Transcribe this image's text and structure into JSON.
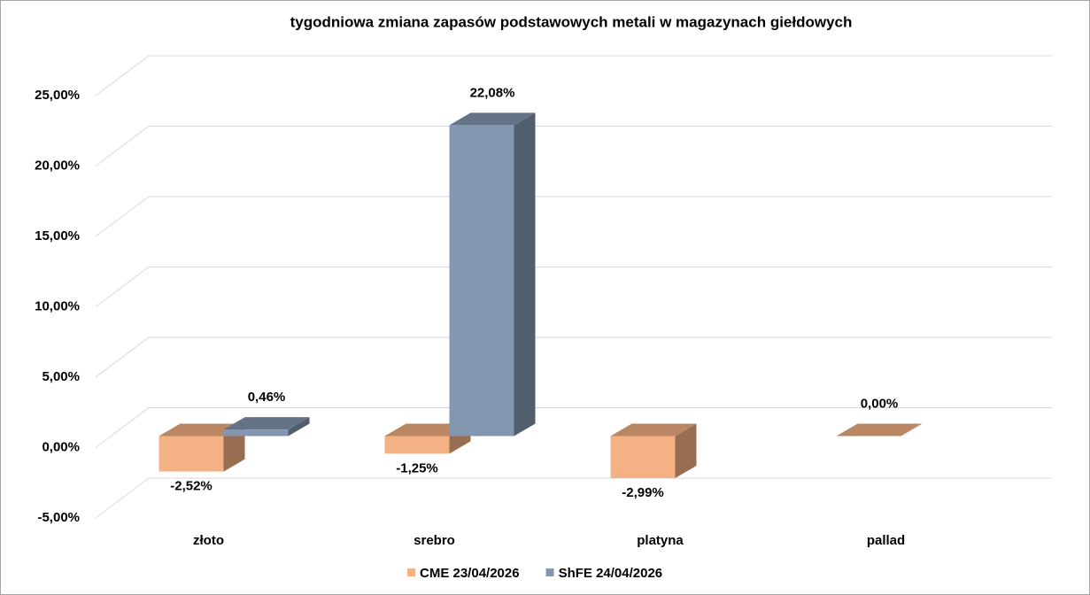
{
  "chart_data": {
    "type": "bar3d",
    "title": "tygodniowa zmiana zapasów podstawowych metali w magazynach giełdowych",
    "categories": [
      "złoto",
      "srebro",
      "platyna",
      "pallad"
    ],
    "series": [
      {
        "name": "CME 23/04/2026",
        "color": "#F4B183",
        "values": [
          -2.52,
          -1.25,
          -2.99,
          0.0
        ],
        "value_labels": [
          "-2,52%",
          "-1,25%",
          "-2,99%",
          "0,00%"
        ]
      },
      {
        "name": "ShFE 24/04/2026",
        "color": "#8497B0",
        "values": [
          0.46,
          22.08,
          null,
          null
        ],
        "value_labels": [
          "0,46%",
          "22,08%",
          null,
          null
        ]
      }
    ],
    "ylim": [
      -5,
      25
    ],
    "yticks": [
      {
        "value": -5,
        "label": "-5,00%"
      },
      {
        "value": 0,
        "label": "0,00%"
      },
      {
        "value": 5,
        "label": "5,00%"
      },
      {
        "value": 10,
        "label": "10,00%"
      },
      {
        "value": 15,
        "label": "15,00%"
      },
      {
        "value": 20,
        "label": "20,00%"
      },
      {
        "value": 25,
        "label": "25,00%"
      }
    ],
    "grid": true,
    "legend": "bottom"
  }
}
